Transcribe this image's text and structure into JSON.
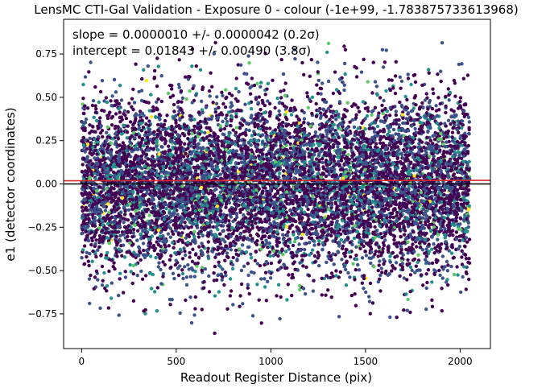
{
  "chart_data": {
    "type": "scatter",
    "title": "LensMC CTI-Gal Validation - Exposure 0 - colour (-1e+99, -1.783875733613968)",
    "xlabel": "Readout Register Distance (pix)",
    "ylabel": "e1 (detector coordinates)",
    "xlim": [
      -95,
      2160
    ],
    "ylim": [
      -0.95,
      0.95
    ],
    "x_ticks": [
      "0",
      "500",
      "1000",
      "1500",
      "2000"
    ],
    "x_tick_values": [
      0,
      500,
      1000,
      1500,
      2000
    ],
    "y_ticks": [
      "−0.75",
      "−0.50",
      "−0.25",
      "0.00",
      "0.25",
      "0.50",
      "0.75"
    ],
    "y_tick_values": [
      -0.75,
      -0.5,
      -0.25,
      0.0,
      0.25,
      0.5,
      0.75
    ],
    "grid": false,
    "annotations": [
      "slope = 0.0000010 +/- 0.0000042 (0.2σ)",
      "intercept = 0.01843 +/- 0.00490 (3.8σ)"
    ],
    "fit_line": {
      "slope": 1e-06,
      "intercept": 0.01843,
      "color": "#d62728"
    },
    "reference_line": {
      "y": 0.0,
      "color": "#000000"
    },
    "scatter_summary": {
      "n_points_approx": 9000,
      "x_range": [
        0,
        2050
      ],
      "y_center": 0.0,
      "y_spread_sigma": 0.25,
      "y_extent": [
        -0.87,
        0.82
      ],
      "colormap": "viridis"
    },
    "colors": [
      "#440154",
      "#3b528b",
      "#21918c",
      "#5ec962",
      "#fde725"
    ]
  }
}
